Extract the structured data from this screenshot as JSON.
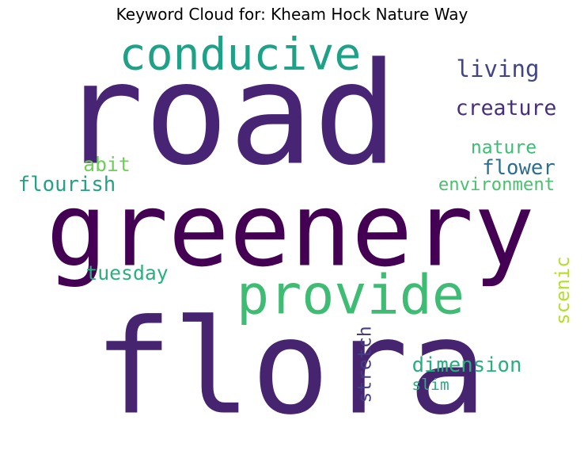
{
  "chart_data": {
    "type": "wordcloud",
    "title": "Keyword Cloud for: Kheam Hock Nature Way",
    "words": [
      {
        "text": "road",
        "color": "#482475"
      },
      {
        "text": "greenery",
        "color": "#440154"
      },
      {
        "text": "flora",
        "color": "#46246f"
      },
      {
        "text": "conducive",
        "color": "#1fa187"
      },
      {
        "text": "provide",
        "color": "#3fbc73"
      },
      {
        "text": "living",
        "color": "#414487"
      },
      {
        "text": "creature",
        "color": "#472e7c"
      },
      {
        "text": "nature",
        "color": "#3fbc73"
      },
      {
        "text": "flower",
        "color": "#2d6e8e"
      },
      {
        "text": "abit",
        "color": "#6ece58"
      },
      {
        "text": "flourish",
        "color": "#25a285"
      },
      {
        "text": "environment",
        "color": "#4ac16d"
      },
      {
        "text": "tuesday",
        "color": "#2ab07f"
      },
      {
        "text": "scenic",
        "color": "#b5de2b"
      },
      {
        "text": "stretch",
        "color": "#433d84"
      },
      {
        "text": "dimension",
        "color": "#29af7f"
      },
      {
        "text": "slim",
        "color": "#29af7f"
      }
    ]
  }
}
